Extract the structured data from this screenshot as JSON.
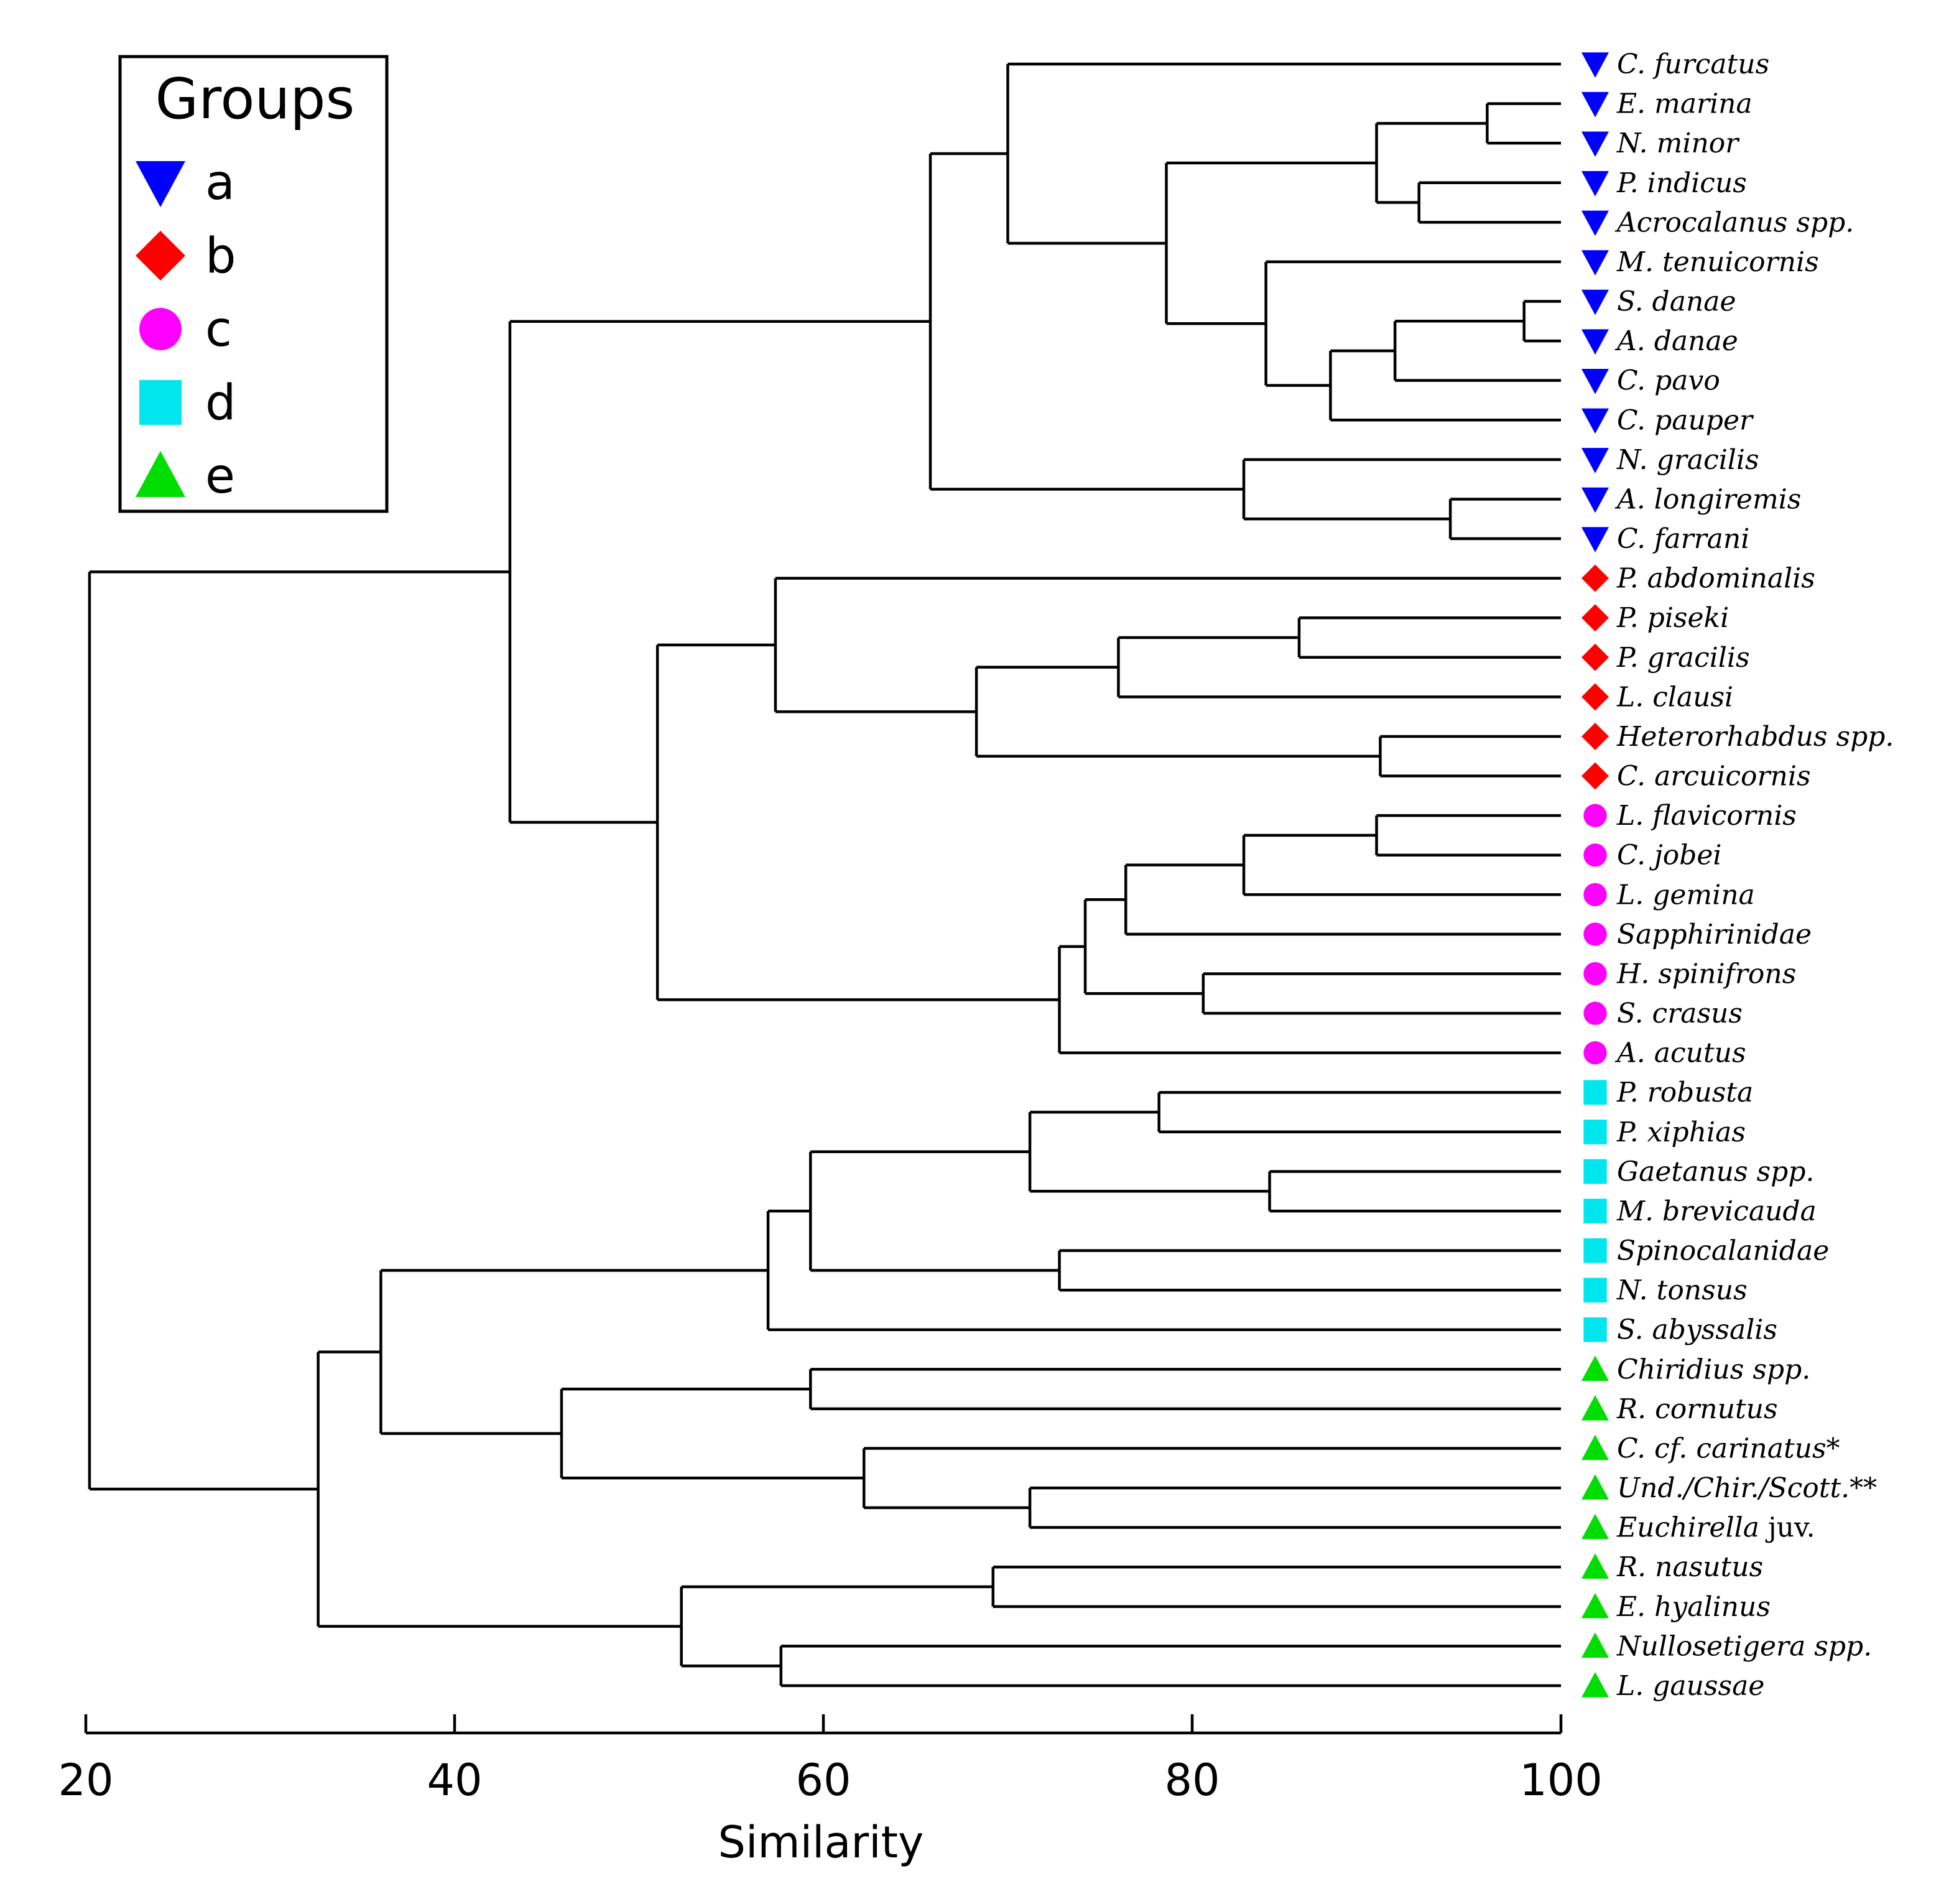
{
  "chart_data": {
    "type": "dendrogram",
    "title": "",
    "xlabel": "Similarity",
    "ylabel": "",
    "xlim": [
      20,
      100
    ],
    "xticks": [
      20,
      40,
      60,
      80,
      100
    ],
    "legend": {
      "title": "Groups",
      "placement": "top-left",
      "entries": [
        {
          "key": "a",
          "label": "a",
          "shape": "triangle-down",
          "color": "#0000ff"
        },
        {
          "key": "b",
          "label": "b",
          "shape": "diamond",
          "color": "#ff0000"
        },
        {
          "key": "c",
          "label": "c",
          "shape": "circle",
          "color": "#ff00ff"
        },
        {
          "key": "d",
          "label": "d",
          "shape": "square",
          "color": "#00e6ee"
        },
        {
          "key": "e",
          "label": "e",
          "shape": "triangle-up",
          "color": "#00dd00"
        }
      ]
    },
    "leaves": [
      {
        "label": "C. furcatus",
        "group": "a"
      },
      {
        "label": "E. marina",
        "group": "a"
      },
      {
        "label": "N. minor",
        "group": "a"
      },
      {
        "label": "P. indicus",
        "group": "a"
      },
      {
        "label": "Acrocalanus spp.",
        "group": "a"
      },
      {
        "label": "M. tenuicornis",
        "group": "a"
      },
      {
        "label": "S. danae",
        "group": "a"
      },
      {
        "label": "A. danae",
        "group": "a"
      },
      {
        "label": "C. pavo",
        "group": "a"
      },
      {
        "label": "C. pauper",
        "group": "a"
      },
      {
        "label": "N. gracilis",
        "group": "a"
      },
      {
        "label": "A. longiremis",
        "group": "a"
      },
      {
        "label": "C. farrani",
        "group": "a"
      },
      {
        "label": "P. abdominalis",
        "group": "b"
      },
      {
        "label": "P. piseki",
        "group": "b"
      },
      {
        "label": "P. gracilis",
        "group": "b"
      },
      {
        "label": "L. clausi",
        "group": "b"
      },
      {
        "label": "Heterorhabdus spp.",
        "group": "b"
      },
      {
        "label": "C. arcuicornis",
        "group": "b"
      },
      {
        "label": "L. flavicornis",
        "group": "c"
      },
      {
        "label": "C. jobei",
        "group": "c"
      },
      {
        "label": "L. gemina",
        "group": "c"
      },
      {
        "label": "Sapphirinidae",
        "group": "c"
      },
      {
        "label": "H. spinifrons",
        "group": "c"
      },
      {
        "label": "S. crasus",
        "group": "c"
      },
      {
        "label": "A. acutus",
        "group": "c"
      },
      {
        "label": "P. robusta",
        "group": "d"
      },
      {
        "label": "P. xiphias",
        "group": "d"
      },
      {
        "label": "Gaetanus spp.",
        "group": "d"
      },
      {
        "label": "M. brevicauda",
        "group": "d"
      },
      {
        "label": "Spinocalanidae",
        "group": "d"
      },
      {
        "label": "N. tonsus",
        "group": "d"
      },
      {
        "label": "S. abyssalis",
        "group": "d"
      },
      {
        "label": "Chiridius spp.",
        "group": "e"
      },
      {
        "label": "R. cornutus",
        "group": "e"
      },
      {
        "label": "C. cf. carinatus*",
        "group": "e"
      },
      {
        "label": "Und./Chir./Scott.**",
        "group": "e"
      },
      {
        "label": "Euchirella",
        "label_suffix": " juv.",
        "group": "e"
      },
      {
        "label": "R. nasutus",
        "group": "e",
        "upright": true
      },
      {
        "label": "E. hyalinus",
        "group": "e",
        "upright": true
      },
      {
        "label": "Nullosetigera spp.",
        "group": "e"
      },
      {
        "label": "L. gaussae",
        "group": "e"
      }
    ],
    "merges": [
      {
        "id": "m1",
        "children": [
          "L6",
          "L7"
        ],
        "similarity": 98.0
      },
      {
        "id": "m2",
        "children": [
          "L1",
          "L2"
        ],
        "similarity": 96.0
      },
      {
        "id": "m3",
        "children": [
          "L11",
          "L12"
        ],
        "similarity": 94.0
      },
      {
        "id": "m4",
        "children": [
          "L3",
          "L4"
        ],
        "similarity": 92.3
      },
      {
        "id": "m5",
        "children": [
          "m1",
          "L8"
        ],
        "similarity": 91.0
      },
      {
        "id": "m6",
        "children": [
          "m2",
          "m4"
        ],
        "similarity": 90.0
      },
      {
        "id": "m7",
        "children": [
          "L17",
          "L18"
        ],
        "similarity": 90.2
      },
      {
        "id": "m8",
        "children": [
          "L19",
          "L20"
        ],
        "similarity": 90.0
      },
      {
        "id": "m9",
        "children": [
          "m5",
          "L9"
        ],
        "similarity": 87.5
      },
      {
        "id": "m10",
        "children": [
          "L14",
          "L15"
        ],
        "similarity": 85.8
      },
      {
        "id": "m11",
        "children": [
          "L28",
          "L29"
        ],
        "similarity": 84.2
      },
      {
        "id": "m12",
        "children": [
          "L5",
          "m9"
        ],
        "similarity": 84.0
      },
      {
        "id": "m13",
        "children": [
          "L10",
          "m3"
        ],
        "similarity": 82.8
      },
      {
        "id": "m14",
        "children": [
          "m8",
          "L21"
        ],
        "similarity": 82.8
      },
      {
        "id": "m15",
        "children": [
          "L26",
          "L27"
        ],
        "similarity": 78.2
      },
      {
        "id": "m16",
        "children": [
          "m6",
          "m12"
        ],
        "similarity": 78.6
      },
      {
        "id": "m17",
        "children": [
          "L23",
          "L24"
        ],
        "similarity": 80.6
      },
      {
        "id": "m18",
        "children": [
          "m14",
          "L22"
        ],
        "similarity": 76.4
      },
      {
        "id": "m19",
        "children": [
          "m10",
          "L16"
        ],
        "similarity": 76.0
      },
      {
        "id": "m20",
        "children": [
          "m18",
          "m17"
        ],
        "similarity": 74.2
      },
      {
        "id": "m21",
        "children": [
          "m20",
          "L25"
        ],
        "similarity": 72.8
      },
      {
        "id": "m22",
        "children": [
          "L30",
          "L31"
        ],
        "similarity": 72.8
      },
      {
        "id": "m23",
        "children": [
          "m15",
          "m11"
        ],
        "similarity": 71.2
      },
      {
        "id": "m24",
        "children": [
          "L36",
          "L37"
        ],
        "similarity": 71.2
      },
      {
        "id": "m25",
        "children": [
          "L0",
          "m16"
        ],
        "similarity": 70.0
      },
      {
        "id": "m26",
        "children": [
          "L38",
          "L39"
        ],
        "similarity": 69.2
      },
      {
        "id": "m27",
        "children": [
          "m19",
          "m7"
        ],
        "similarity": 68.3
      },
      {
        "id": "m28",
        "children": [
          "m25",
          "m13"
        ],
        "similarity": 65.8
      },
      {
        "id": "m29",
        "children": [
          "L35",
          "m24"
        ],
        "similarity": 62.2
      },
      {
        "id": "m30",
        "children": [
          "m23",
          "m22"
        ],
        "similarity": 59.3
      },
      {
        "id": "m31",
        "children": [
          "L33",
          "L34"
        ],
        "similarity": 59.3
      },
      {
        "id": "m32",
        "children": [
          "L40",
          "L41"
        ],
        "similarity": 57.7
      },
      {
        "id": "m33",
        "children": [
          "L13",
          "m27"
        ],
        "similarity": 57.4
      },
      {
        "id": "m34",
        "children": [
          "m30",
          "L32"
        ],
        "similarity": 57.0
      },
      {
        "id": "m35",
        "children": [
          "m26",
          "m32"
        ],
        "similarity": 52.3
      },
      {
        "id": "m36",
        "children": [
          "m33",
          "m21"
        ],
        "similarity": 51.0
      },
      {
        "id": "m37",
        "children": [
          "m31",
          "m29"
        ],
        "similarity": 45.8
      },
      {
        "id": "m38",
        "children": [
          "m28",
          "m36"
        ],
        "similarity": 43.0
      },
      {
        "id": "m39",
        "children": [
          "m34",
          "m37"
        ],
        "similarity": 36.0
      },
      {
        "id": "m40",
        "children": [
          "m39",
          "m35"
        ],
        "similarity": 32.6
      },
      {
        "id": "m41",
        "children": [
          "m38",
          "m40"
        ],
        "similarity": 20.2
      }
    ]
  }
}
